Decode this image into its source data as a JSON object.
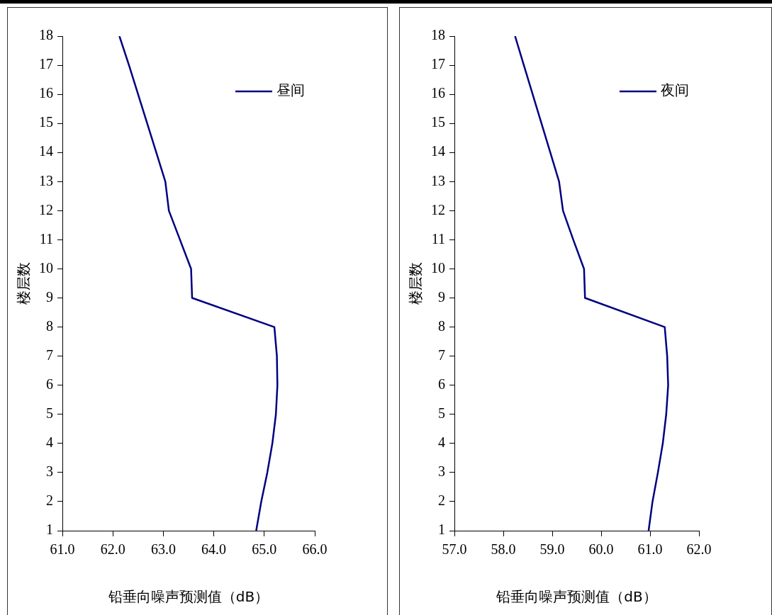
{
  "chart_data": [
    {
      "type": "line",
      "xlabel": "铅垂向噪声预测值（dB）",
      "ylabel": "楼层数",
      "xlim": [
        61,
        66
      ],
      "ylim": [
        1,
        18
      ],
      "xticks": [
        {
          "value": 61,
          "label": "61.0"
        },
        {
          "value": 62,
          "label": "62.0"
        },
        {
          "value": 63,
          "label": "63.0"
        },
        {
          "value": 64,
          "label": "64.0"
        },
        {
          "value": 65,
          "label": "65.0"
        },
        {
          "value": 66,
          "label": "66.0"
        }
      ],
      "yticks": [
        1,
        2,
        3,
        4,
        5,
        6,
        7,
        8,
        9,
        10,
        11,
        12,
        13,
        14,
        15,
        16,
        17,
        18
      ],
      "grid": false,
      "legend": "top right",
      "marker": "none",
      "series": [
        {
          "name": "昼间",
          "color": "#000080",
          "x": [
            64.84,
            64.94,
            65.06,
            65.16,
            65.23,
            65.26,
            65.25,
            65.2,
            63.57,
            63.55,
            63.33,
            63.11,
            63.04,
            62.86,
            62.68,
            62.5,
            62.32,
            62.13
          ],
          "values": [
            1,
            2,
            3,
            4,
            5,
            6,
            7,
            8,
            9,
            10,
            11,
            12,
            13,
            14,
            15,
            16,
            17,
            18
          ]
        }
      ]
    },
    {
      "type": "line",
      "xlabel": "铅垂向噪声预测值（dB）",
      "ylabel": "楼层数",
      "xlim": [
        57,
        62
      ],
      "ylim": [
        1,
        18
      ],
      "xticks": [
        {
          "value": 57,
          "label": "57.0"
        },
        {
          "value": 58,
          "label": "58.0"
        },
        {
          "value": 59,
          "label": "59.0"
        },
        {
          "value": 60,
          "label": "60.0"
        },
        {
          "value": 61,
          "label": "61.0"
        },
        {
          "value": 62,
          "label": "62.0"
        }
      ],
      "yticks": [
        1,
        2,
        3,
        4,
        5,
        6,
        7,
        8,
        9,
        10,
        11,
        12,
        13,
        14,
        15,
        16,
        17,
        18
      ],
      "grid": false,
      "legend": "top right",
      "marker": "none",
      "series": [
        {
          "name": "夜间",
          "color": "#000080",
          "x": [
            60.97,
            61.05,
            61.16,
            61.26,
            61.33,
            61.37,
            61.35,
            61.3,
            59.67,
            59.65,
            59.43,
            59.22,
            59.14,
            58.96,
            58.78,
            58.6,
            58.42,
            58.24
          ],
          "values": [
            1,
            2,
            3,
            4,
            5,
            6,
            7,
            8,
            9,
            10,
            11,
            12,
            13,
            14,
            15,
            16,
            17,
            18
          ]
        }
      ]
    }
  ]
}
